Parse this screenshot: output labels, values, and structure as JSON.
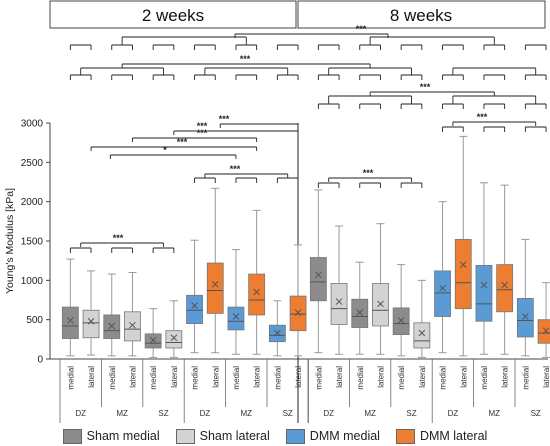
{
  "chart_data": {
    "type": "box",
    "panels": [
      {
        "title": "2 weeks"
      },
      {
        "title": "8 weeks"
      }
    ],
    "ylabel": "Young's Modulus [kPa]",
    "ylim": [
      0,
      3000
    ],
    "yticks": [
      "0",
      "500",
      "1000",
      "1500",
      "2000",
      "2500",
      "3000"
    ],
    "sublabels": [
      "medial",
      "lateral"
    ],
    "zones": [
      "DZ",
      "MZ",
      "SZ"
    ],
    "groups": [
      "Sham",
      "DMM"
    ],
    "significance_label": "***",
    "single_significance_label": "*",
    "colors": {
      "Sham medial": "#8c8c8c",
      "Sham lateral": "#d3d3d3",
      "DMM medial": "#5b9bd5",
      "DMM lateral": "#ed7d31"
    },
    "series": [
      {
        "name": "Sham medial",
        "panel": 0,
        "zone": "DZ",
        "q1": 260,
        "median": 420,
        "q3": 660,
        "mean": 490,
        "whisker_low": 40,
        "whisker_high": 1270
      },
      {
        "name": "Sham lateral",
        "panel": 0,
        "zone": "DZ",
        "q1": 270,
        "median": 460,
        "q3": 620,
        "mean": 480,
        "whisker_low": 50,
        "whisker_high": 1120
      },
      {
        "name": "Sham medial",
        "panel": 0,
        "zone": "MZ",
        "q1": 260,
        "median": 360,
        "q3": 560,
        "mean": 420,
        "whisker_low": 40,
        "whisker_high": 1080
      },
      {
        "name": "Sham lateral",
        "panel": 0,
        "zone": "MZ",
        "q1": 230,
        "median": 380,
        "q3": 600,
        "mean": 430,
        "whisker_low": 40,
        "whisker_high": 1100
      },
      {
        "name": "Sham medial",
        "panel": 0,
        "zone": "SZ",
        "q1": 140,
        "median": 200,
        "q3": 320,
        "mean": 240,
        "whisker_low": 20,
        "whisker_high": 640
      },
      {
        "name": "Sham lateral",
        "panel": 0,
        "zone": "SZ",
        "q1": 140,
        "median": 210,
        "q3": 360,
        "mean": 270,
        "whisker_low": 20,
        "whisker_high": 740
      },
      {
        "name": "DMM medial",
        "panel": 0,
        "zone": "DZ",
        "q1": 450,
        "median": 620,
        "q3": 810,
        "mean": 680,
        "whisker_low": 80,
        "whisker_high": 1510
      },
      {
        "name": "DMM lateral",
        "panel": 0,
        "zone": "DZ",
        "q1": 580,
        "median": 870,
        "q3": 1220,
        "mean": 950,
        "whisker_low": 80,
        "whisker_high": 2170
      },
      {
        "name": "DMM medial",
        "panel": 0,
        "zone": "MZ",
        "q1": 370,
        "median": 480,
        "q3": 660,
        "mean": 540,
        "whisker_low": 60,
        "whisker_high": 1390
      },
      {
        "name": "DMM lateral",
        "panel": 0,
        "zone": "MZ",
        "q1": 560,
        "median": 750,
        "q3": 1080,
        "mean": 850,
        "whisker_low": 60,
        "whisker_high": 1890
      },
      {
        "name": "DMM medial",
        "panel": 0,
        "zone": "SZ",
        "q1": 220,
        "median": 300,
        "q3": 430,
        "mean": 330,
        "whisker_low": 40,
        "whisker_high": 740
      },
      {
        "name": "DMM lateral",
        "panel": 0,
        "zone": "SZ",
        "q1": 360,
        "median": 570,
        "q3": 800,
        "mean": 590,
        "whisker_low": 40,
        "whisker_high": 1450
      },
      {
        "name": "Sham medial",
        "panel": 1,
        "zone": "DZ",
        "q1": 740,
        "median": 980,
        "q3": 1290,
        "mean": 1070,
        "whisker_low": 80,
        "whisker_high": 2150
      },
      {
        "name": "Sham lateral",
        "panel": 1,
        "zone": "DZ",
        "q1": 440,
        "median": 640,
        "q3": 960,
        "mean": 730,
        "whisker_low": 60,
        "whisker_high": 1690
      },
      {
        "name": "Sham medial",
        "panel": 1,
        "zone": "MZ",
        "q1": 400,
        "median": 540,
        "q3": 760,
        "mean": 590,
        "whisker_low": 60,
        "whisker_high": 1230
      },
      {
        "name": "Sham lateral",
        "panel": 1,
        "zone": "MZ",
        "q1": 420,
        "median": 620,
        "q3": 960,
        "mean": 700,
        "whisker_low": 60,
        "whisker_high": 1720
      },
      {
        "name": "Sham medial",
        "panel": 1,
        "zone": "SZ",
        "q1": 310,
        "median": 450,
        "q3": 650,
        "mean": 490,
        "whisker_low": 40,
        "whisker_high": 1200
      },
      {
        "name": "Sham lateral",
        "panel": 1,
        "zone": "SZ",
        "q1": 140,
        "median": 230,
        "q3": 460,
        "mean": 330,
        "whisker_low": 20,
        "whisker_high": 1000
      },
      {
        "name": "DMM medial",
        "panel": 1,
        "zone": "DZ",
        "q1": 540,
        "median": 840,
        "q3": 1120,
        "mean": 900,
        "whisker_low": 80,
        "whisker_high": 2000
      },
      {
        "name": "DMM lateral",
        "panel": 1,
        "zone": "DZ",
        "q1": 640,
        "median": 970,
        "q3": 1520,
        "mean": 1200,
        "whisker_low": 40,
        "whisker_high": 2830
      },
      {
        "name": "DMM medial",
        "panel": 1,
        "zone": "MZ",
        "q1": 480,
        "median": 700,
        "q3": 1190,
        "mean": 940,
        "whisker_low": 60,
        "whisker_high": 2240
      },
      {
        "name": "DMM lateral",
        "panel": 1,
        "zone": "MZ",
        "q1": 600,
        "median": 880,
        "q3": 1200,
        "mean": 940,
        "whisker_low": 60,
        "whisker_high": 2210
      },
      {
        "name": "DMM medial",
        "panel": 1,
        "zone": "SZ",
        "q1": 280,
        "median": 490,
        "q3": 770,
        "mean": 540,
        "whisker_low": 40,
        "whisker_high": 1520
      },
      {
        "name": "DMM lateral",
        "panel": 1,
        "zone": "SZ",
        "q1": 200,
        "median": 330,
        "q3": 500,
        "mean": 360,
        "whisker_low": 20,
        "whisker_high": 970
      }
    ]
  }
}
